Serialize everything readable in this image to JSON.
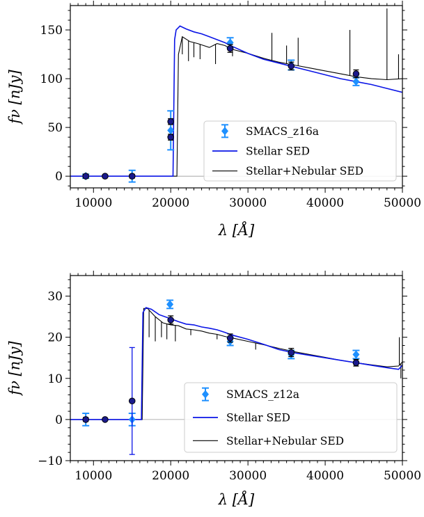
{
  "chart_data": [
    {
      "type": "line",
      "xlabel": "λ [Å]",
      "ylabel": "fν [nJy]",
      "xlim": [
        7000,
        50000
      ],
      "ylim": [
        -12,
        175
      ],
      "xticks": [
        10000,
        20000,
        30000,
        40000,
        50000
      ],
      "xtick_labels": [
        "10000",
        "20000",
        "30000",
        "40000",
        "50000"
      ],
      "yticks": [
        0,
        50,
        100,
        150
      ],
      "ytick_labels": [
        "0",
        "50",
        "100",
        "150"
      ],
      "legend_position": "lower-right",
      "legend": [
        {
          "label": "SMACS_z16a",
          "kind": "points"
        },
        {
          "label": "Stellar SED",
          "kind": "blue-line"
        },
        {
          "label": "Stellar+Nebular SED",
          "kind": "black-line"
        }
      ],
      "stellar_sed": [
        [
          7000,
          0
        ],
        [
          20300,
          0
        ],
        [
          20500,
          140
        ],
        [
          20700,
          150
        ],
        [
          21200,
          154
        ],
        [
          22000,
          151
        ],
        [
          23000,
          148
        ],
        [
          24000,
          146
        ],
        [
          25000,
          143
        ],
        [
          26000,
          140
        ],
        [
          27000,
          137
        ],
        [
          28000,
          133
        ],
        [
          30000,
          126
        ],
        [
          32000,
          120
        ],
        [
          34000,
          116
        ],
        [
          36000,
          112
        ],
        [
          38000,
          108
        ],
        [
          40000,
          104
        ],
        [
          42000,
          100
        ],
        [
          44000,
          97
        ],
        [
          46000,
          94
        ],
        [
          48000,
          90
        ],
        [
          50000,
          86
        ]
      ],
      "nebular_sed": [
        [
          7000,
          0
        ],
        [
          20800,
          0
        ],
        [
          21000,
          125
        ],
        [
          21500,
          143
        ],
        [
          22500,
          138
        ],
        [
          23500,
          136
        ],
        [
          25000,
          132
        ],
        [
          26000,
          136
        ],
        [
          27000,
          134
        ],
        [
          28000,
          130
        ],
        [
          30000,
          126
        ],
        [
          32000,
          121
        ],
        [
          34000,
          117
        ],
        [
          36000,
          114
        ],
        [
          38000,
          111
        ],
        [
          40000,
          108
        ],
        [
          42000,
          105
        ],
        [
          44000,
          102
        ],
        [
          46000,
          100
        ],
        [
          48000,
          99
        ],
        [
          50000,
          100
        ]
      ],
      "nebular_lines": [
        [
          21500,
          125
        ],
        [
          22300,
          118
        ],
        [
          23000,
          122
        ],
        [
          23800,
          120
        ],
        [
          25800,
          115
        ],
        [
          28000,
          123
        ],
        [
          33100,
          147
        ],
        [
          35000,
          134
        ],
        [
          36500,
          142
        ],
        [
          43200,
          150
        ],
        [
          48000,
          172
        ],
        [
          49500,
          125
        ]
      ],
      "photometry": [
        {
          "x": 9000,
          "y": 0,
          "err": 2
        },
        {
          "x": 15000,
          "y": 0,
          "err": 6
        },
        {
          "x": 20000,
          "y": 47,
          "err": 20
        },
        {
          "x": 27700,
          "y": 137,
          "err": 5
        },
        {
          "x": 35600,
          "y": 114,
          "err": 5
        },
        {
          "x": 44000,
          "y": 97,
          "err": 4
        }
      ],
      "model_points": [
        {
          "x": 9000,
          "y": 0,
          "err": 2
        },
        {
          "x": 11500,
          "y": 0,
          "err": 1
        },
        {
          "x": 15000,
          "y": 0,
          "err": 2
        },
        {
          "x": 20000,
          "y": 40,
          "err": 3
        },
        {
          "x": 20000,
          "y": 56,
          "err": 3
        },
        {
          "x": 27700,
          "y": 131,
          "err": 4
        },
        {
          "x": 35600,
          "y": 113,
          "err": 4
        },
        {
          "x": 44000,
          "y": 105,
          "err": 4
        }
      ]
    },
    {
      "type": "line",
      "xlabel": "λ [Å]",
      "ylabel": "fν [nJy]",
      "xlim": [
        7000,
        50000
      ],
      "ylim": [
        -10,
        35
      ],
      "xticks": [
        10000,
        20000,
        30000,
        40000,
        50000
      ],
      "xtick_labels": [
        "10000",
        "20000",
        "30000",
        "40000",
        "50000"
      ],
      "yticks": [
        -10,
        0,
        10,
        20,
        30
      ],
      "ytick_labels": [
        "−10",
        "0",
        "10",
        "20",
        "30"
      ],
      "legend_position": "lower-right",
      "legend": [
        {
          "label": "SMACS_z12a",
          "kind": "points"
        },
        {
          "label": "Stellar SED",
          "kind": "blue-line"
        },
        {
          "label": "Stellar+Nebular SED",
          "kind": "black-line"
        }
      ],
      "stellar_sed": [
        [
          7000,
          0
        ],
        [
          16200,
          0
        ],
        [
          16400,
          26
        ],
        [
          16800,
          27.2
        ],
        [
          17500,
          26.8
        ],
        [
          18500,
          25.5
        ],
        [
          20000,
          24.5
        ],
        [
          21000,
          23.8
        ],
        [
          22000,
          23.2
        ],
        [
          23000,
          23
        ],
        [
          24000,
          22.5
        ],
        [
          25000,
          22.2
        ],
        [
          26000,
          21.8
        ],
        [
          27000,
          21.2
        ],
        [
          28000,
          20.5
        ],
        [
          30000,
          19.5
        ],
        [
          32000,
          18.3
        ],
        [
          34000,
          17
        ],
        [
          36000,
          16.2
        ],
        [
          38000,
          15.6
        ],
        [
          40000,
          15
        ],
        [
          42000,
          14.4
        ],
        [
          44000,
          13.8
        ],
        [
          46000,
          13.2
        ],
        [
          48000,
          12.6
        ],
        [
          49500,
          12.2
        ],
        [
          50000,
          13.2
        ]
      ],
      "nebular_sed": [
        [
          7000,
          0
        ],
        [
          16300,
          0
        ],
        [
          16500,
          27
        ],
        [
          17000,
          27
        ],
        [
          18000,
          25
        ],
        [
          19000,
          23.5
        ],
        [
          20000,
          23
        ],
        [
          21000,
          22.8
        ],
        [
          22000,
          22
        ],
        [
          23000,
          21.8
        ],
        [
          24000,
          21.5
        ],
        [
          25000,
          21
        ],
        [
          26000,
          20.7
        ],
        [
          27000,
          20.2
        ],
        [
          28000,
          19.8
        ],
        [
          30000,
          19
        ],
        [
          32000,
          18.2
        ],
        [
          34000,
          17.3
        ],
        [
          36000,
          16.5
        ],
        [
          38000,
          15.8
        ],
        [
          40000,
          15.1
        ],
        [
          42000,
          14.4
        ],
        [
          44000,
          13.8
        ],
        [
          46000,
          13.3
        ],
        [
          48000,
          12.8
        ],
        [
          49500,
          13
        ],
        [
          50000,
          14
        ]
      ],
      "nebular_lines": [
        [
          17200,
          20
        ],
        [
          18000,
          19
        ],
        [
          18800,
          20
        ],
        [
          19500,
          19.5
        ],
        [
          20600,
          19
        ],
        [
          22600,
          20.5
        ],
        [
          26000,
          19.5
        ],
        [
          31000,
          17
        ],
        [
          49600,
          20
        ],
        [
          49800,
          10
        ]
      ],
      "photometry": [
        {
          "x": 9000,
          "y": 0,
          "err": 1.5
        },
        {
          "x": 15000,
          "y": 0,
          "err": 1.5
        },
        {
          "x": 19900,
          "y": 28,
          "err": 1
        },
        {
          "x": 27700,
          "y": 19,
          "err": 1
        },
        {
          "x": 35600,
          "y": 15.8,
          "err": 1
        },
        {
          "x": 44000,
          "y": 15.8,
          "err": 1
        }
      ],
      "model_points": [
        {
          "x": 9000,
          "y": 0,
          "err": 0.5
        },
        {
          "x": 11500,
          "y": 0,
          "err": 0.3
        },
        {
          "x": 15000,
          "y": 4.5,
          "err": 13
        },
        {
          "x": 20000,
          "y": 24.2,
          "err": 1
        },
        {
          "x": 27700,
          "y": 19.8,
          "err": 1
        },
        {
          "x": 35600,
          "y": 16.3,
          "err": 1
        },
        {
          "x": 44000,
          "y": 13.8,
          "err": 0.8
        }
      ]
    }
  ],
  "colors": {
    "photometry": "#1e90ff",
    "stellar": "#0a14e6",
    "nebular": "#000000",
    "model_point": "#1a1a8c"
  }
}
